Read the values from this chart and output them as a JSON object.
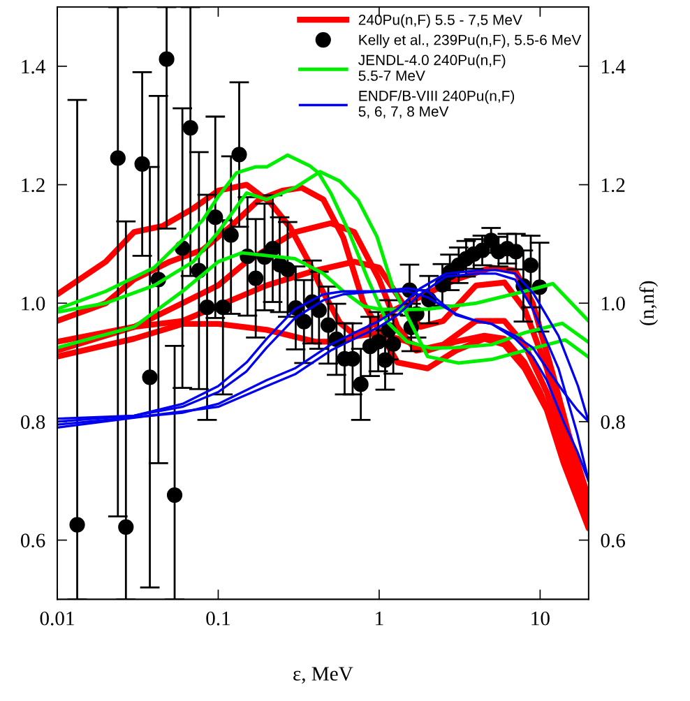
{
  "chart_data": {
    "type": "line",
    "xlabel": "ε, MeV",
    "y2label": "(n,nf)",
    "log": "x",
    "xlim": [
      0.01,
      20
    ],
    "xticks": [
      0.01,
      0.1,
      1,
      10
    ],
    "ylim": [
      0.5,
      1.5
    ],
    "yticks": [
      0.6,
      0.8,
      {
        "value": 1.0,
        "label": "1.0"
      },
      1.2,
      1.4
    ],
    "y2lim": [
      0.5,
      1.5
    ],
    "y2ticks": [
      0.6,
      0.8,
      {
        "value": 1.0,
        "label": "1.0"
      },
      1.2,
      1.4
    ],
    "grid": false,
    "legend": "top right",
    "series": [
      {
        "name": "240Pu(n,F) 5.5 - 7,5 MeV",
        "color": "#ff0000",
        "x": [
          0.01,
          0.02,
          0.03,
          0.045,
          0.07,
          0.1,
          0.15,
          0.21,
          0.28,
          0.36,
          0.45,
          0.57,
          0.72,
          1.0,
          1.5,
          2,
          3,
          4.5,
          6,
          8,
          10,
          14,
          20
        ],
        "values": [
          1.015,
          1.07,
          1.12,
          1.13,
          1.16,
          1.19,
          1.2,
          1.17,
          1.128,
          1.073,
          1.018,
          0.967,
          0.944,
          0.95,
          0.935,
          0.92,
          0.935,
          0.945,
          0.94,
          0.9,
          0.85,
          0.75,
          0.63
        ]
      },
      {
        "color": "#ff0000",
        "x": [
          0.01,
          0.02,
          0.03,
          0.05,
          0.08,
          0.12,
          0.18,
          0.25,
          0.33,
          0.45,
          0.6,
          0.8,
          1.3,
          2,
          3,
          4.5,
          6,
          8,
          11,
          14,
          20
        ],
        "values": [
          0.97,
          1.0,
          1.04,
          1.07,
          1.09,
          1.13,
          1.175,
          1.19,
          1.195,
          1.175,
          1.11,
          1.0,
          0.9,
          0.89,
          0.92,
          0.94,
          0.93,
          0.89,
          0.82,
          0.73,
          0.62
        ]
      },
      {
        "color": "#ff0000",
        "x": [
          0.01,
          0.03,
          0.06,
          0.1,
          0.15,
          0.3,
          0.5,
          0.7,
          1.0,
          1.3,
          1.7,
          2.5,
          4,
          6,
          8,
          11,
          14,
          20
        ],
        "values": [
          0.935,
          0.96,
          1.0,
          1.03,
          1.07,
          1.12,
          1.135,
          1.12,
          1.04,
          0.96,
          0.92,
          0.93,
          0.97,
          0.97,
          0.93,
          0.85,
          0.76,
          0.64
        ]
      },
      {
        "color": "#ff0000",
        "x": [
          0.01,
          0.03,
          0.06,
          0.2,
          0.4,
          0.7,
          1.0,
          1.4,
          1.8,
          2.5,
          4,
          6,
          8,
          11,
          14,
          20
        ],
        "values": [
          0.92,
          0.96,
          0.97,
          1.03,
          1.055,
          1.07,
          1.06,
          1.0,
          0.96,
          0.97,
          1.03,
          1.035,
          0.99,
          0.89,
          0.78,
          0.65
        ]
      },
      {
        "color": "#ff0000",
        "x": [
          0.01,
          0.03,
          0.06,
          0.1,
          0.2,
          0.4,
          0.6,
          0.8,
          1.0,
          1.5,
          3,
          5,
          7,
          9,
          12,
          15,
          20
        ],
        "values": [
          0.91,
          0.94,
          0.965,
          0.965,
          0.955,
          0.935,
          0.935,
          0.95,
          0.975,
          1.0,
          1.04,
          1.06,
          1.055,
          1.0,
          0.88,
          0.78,
          0.67
        ]
      },
      {
        "type": "scatter",
        "name": "Kelly et al., 239Pu(n,F), 5.5-6 MeV",
        "color": "#000000",
        "marker": "circle",
        "x": [
          0.0133,
          0.0238,
          0.0267,
          0.0337,
          0.0376,
          0.0425,
          0.0478,
          0.0536,
          0.0599,
          0.0672,
          0.0759,
          0.0853,
          0.0959,
          0.107,
          0.12,
          0.135,
          0.152,
          0.171,
          0.194,
          0.218,
          0.241,
          0.27,
          0.303,
          0.341,
          0.383,
          0.423,
          0.483,
          0.543,
          0.61,
          0.684,
          0.769,
          0.879,
          0.987,
          1.089,
          1.146,
          1.224,
          1.545,
          1.58,
          1.71,
          2.04,
          2.47,
          2.75,
          3.12,
          3.47,
          3.87,
          4.37,
          4.96,
          5.52,
          6.25,
          7.08,
          7.87,
          8.75,
          9.93
        ],
        "values": [
          0.626,
          1.245,
          0.622,
          1.235,
          0.875,
          1.04,
          1.412,
          0.676,
          1.093,
          1.296,
          1.055,
          0.993,
          1.145,
          0.993,
          1.115,
          1.251,
          1.079,
          1.042,
          1.078,
          1.092,
          1.065,
          1.057,
          0.992,
          0.969,
          1.002,
          0.988,
          0.963,
          0.939,
          0.906,
          0.906,
          0.863,
          0.927,
          0.935,
          0.904,
          0.955,
          0.931,
          1.022,
          0.959,
          0.982,
          1.006,
          1.031,
          1.052,
          1.064,
          1.075,
          1.083,
          1.089,
          1.106,
          1.087,
          1.092,
          1.087,
          1.029,
          1.064,
          1.027
        ],
        "errors": [
          [
            0.5,
            1.343
          ],
          [
            0.64,
            1.5
          ],
          [
            0.5,
            1.138
          ],
          0.155,
          0.355,
          0.31,
          [
            1.126,
            1.5
          ],
          [
            0.5,
            0.928
          ],
          0.236,
          [
            1.046,
            1.5
          ],
          0.2,
          0.19,
          0.17,
          0.147,
          0.133,
          0.122,
          0.1,
          0.1,
          0.09,
          0.09,
          0.08,
          0.08,
          0.07,
          0.07,
          0.07,
          0.065,
          0.065,
          0.06,
          0.06,
          0.06,
          0.06,
          0.05,
          0.05,
          0.05,
          0.05,
          0.05,
          0.043,
          0.04,
          0.04,
          0.04,
          0.035,
          0.03,
          0.03,
          0.03,
          0.025,
          0.025,
          0.021,
          0.025,
          0.025,
          0.03,
          0.06,
          [
            0.993,
            1.114
          ],
          0.075
        ]
      },
      {
        "name": "JENDL-4.0 240Pu(n,F)\n5.5-7 MeV",
        "color": "#00ee00",
        "x": [
          0.01,
          0.02,
          0.04,
          0.08,
          0.1,
          0.13,
          0.17,
          0.2,
          0.27,
          0.37,
          0.42,
          0.5,
          0.65,
          0.85,
          1.11,
          1.49,
          2.1,
          3,
          5,
          8,
          13.7,
          20
        ],
        "values": [
          0.99,
          1.02,
          1.06,
          1.14,
          1.18,
          1.22,
          1.23,
          1.23,
          1.25,
          1.232,
          1.22,
          1.186,
          1.12,
          1.041,
          0.97,
          0.935,
          0.924,
          0.925,
          0.93,
          0.95,
          0.966,
          0.934
        ]
      },
      {
        "color": "#00ee00",
        "x": [
          0.01,
          0.02,
          0.04,
          0.07,
          0.1,
          0.15,
          0.2,
          0.3,
          0.43,
          0.57,
          0.74,
          0.97,
          1.22,
          2.0,
          3.1,
          5,
          8,
          14.3,
          20
        ],
        "values": [
          0.985,
          1.0,
          1.03,
          1.07,
          1.12,
          1.186,
          1.175,
          1.195,
          1.222,
          1.206,
          1.174,
          1.112,
          1.026,
          0.91,
          0.899,
          0.905,
          0.92,
          0.938,
          0.909
        ]
      },
      {
        "color": "#00ee00",
        "x": [
          0.01,
          0.03,
          0.06,
          0.1,
          0.14,
          0.3,
          0.45,
          0.6,
          0.8,
          1.0,
          1.4,
          2,
          4,
          8,
          12,
          20
        ],
        "values": [
          0.925,
          0.96,
          1.02,
          1.07,
          1.085,
          1.075,
          1.05,
          1.02,
          0.995,
          0.99,
          0.989,
          0.99,
          1.0,
          1.02,
          1.033,
          0.97
        ]
      },
      {
        "name": "ENDF/B-VIII 240Pu(n,F)\n5, 6, 7, 8 MeV",
        "color": "#0000ee",
        "x": [
          0.01,
          0.03,
          0.06,
          0.1,
          0.15,
          0.2,
          0.3,
          0.45,
          0.6,
          1.0,
          1.5,
          2,
          3,
          4,
          5,
          7,
          9,
          11,
          14,
          17,
          20
        ],
        "values": [
          0.805,
          0.81,
          0.83,
          0.86,
          0.9,
          0.94,
          0.99,
          1.015,
          1.02,
          1.02,
          1.02,
          1.01,
          0.982,
          0.97,
          0.965,
          0.945,
          0.925,
          0.89,
          0.85,
          0.82,
          0.8
        ]
      },
      {
        "color": "#0000ee",
        "x": [
          0.01,
          0.03,
          0.06,
          0.1,
          0.15,
          0.2,
          0.3,
          0.45,
          0.6,
          1.0,
          1.5,
          2,
          3,
          4,
          5,
          7,
          9,
          11,
          14,
          17,
          20
        ],
        "values": [
          0.8,
          0.81,
          0.825,
          0.85,
          0.885,
          0.925,
          0.975,
          1.005,
          1.015,
          1.02,
          1.025,
          1.02,
          0.98,
          0.97,
          0.965,
          0.94,
          0.91,
          0.87,
          0.8,
          0.75,
          0.7
        ]
      },
      {
        "color": "#0000ee",
        "x": [
          0.01,
          0.06,
          0.1,
          0.2,
          0.3,
          0.5,
          0.7,
          1.0,
          1.3,
          1.8,
          2.6,
          4,
          5.3,
          7,
          9.1,
          13,
          17.2,
          20
        ],
        "values": [
          0.795,
          0.815,
          0.83,
          0.87,
          0.89,
          0.93,
          0.95,
          0.97,
          0.99,
          1.025,
          1.05,
          1.055,
          1.056,
          1.05,
          1.016,
          0.945,
          0.86,
          0.8
        ]
      },
      {
        "color": "#0000ee",
        "x": [
          0.01,
          0.1,
          0.2,
          0.3,
          0.5,
          0.7,
          1.0,
          1.3,
          1.8,
          2.6,
          4,
          5.3,
          7,
          9,
          13,
          17,
          20
        ],
        "values": [
          0.79,
          0.825,
          0.86,
          0.88,
          0.92,
          0.94,
          0.96,
          0.98,
          1.015,
          1.045,
          1.05,
          1.05,
          1.04,
          0.99,
          0.89,
          0.78,
          0.7
        ]
      }
    ]
  }
}
